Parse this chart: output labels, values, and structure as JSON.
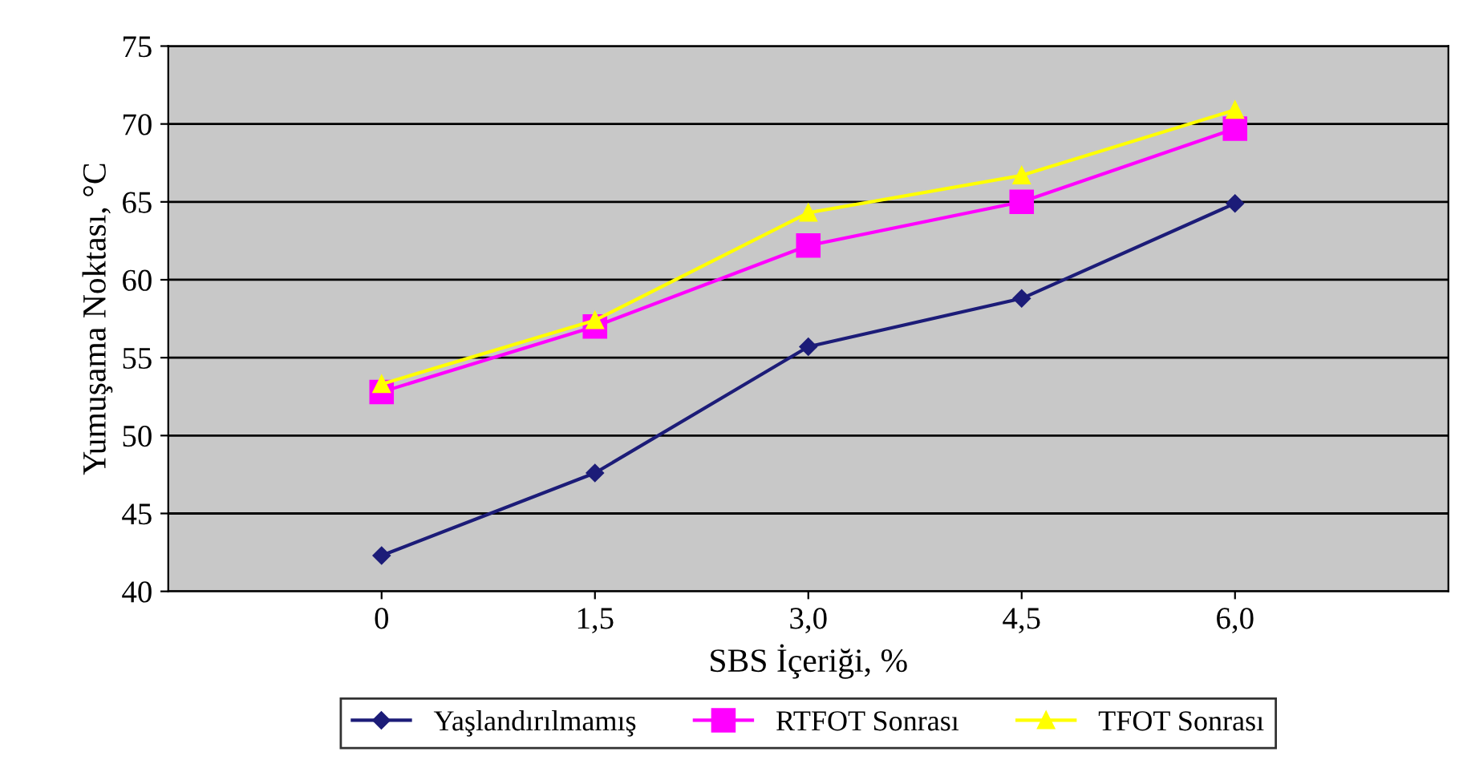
{
  "chart_data": {
    "type": "line",
    "xlabel": "SBS İçeriği, %",
    "ylabel": "Yumuşama Noktası, °C",
    "x": [
      0,
      1.5,
      3,
      4.5,
      6
    ],
    "xlim": [
      -1.5,
      7.5
    ],
    "xticks": [
      0,
      {
        "value": 1.5,
        "label": "1,5"
      },
      {
        "value": 3,
        "label": "3,0"
      },
      {
        "value": 4.5,
        "label": "4,5"
      },
      {
        "value": 6,
        "label": "6,0"
      }
    ],
    "ylim": [
      40,
      75
    ],
    "yticks": [
      40,
      45,
      50,
      55,
      60,
      65,
      70,
      75
    ],
    "grid": "y",
    "legend": "bottom",
    "series": [
      {
        "name": "Yaşlandırılmamış",
        "color": "#1c1c78",
        "marker": "diamond",
        "values": [
          42.3,
          47.6,
          55.7,
          58.8,
          64.9
        ]
      },
      {
        "name": "RTFOT Sonrası",
        "color": "#ff00ff",
        "marker": "square",
        "values": [
          52.8,
          57.0,
          62.2,
          65.0,
          69.7
        ]
      },
      {
        "name": "TFOT Sonrası",
        "color": "#ffff00",
        "marker": "triangle",
        "values": [
          53.3,
          57.4,
          64.3,
          66.7,
          70.9
        ]
      }
    ]
  }
}
